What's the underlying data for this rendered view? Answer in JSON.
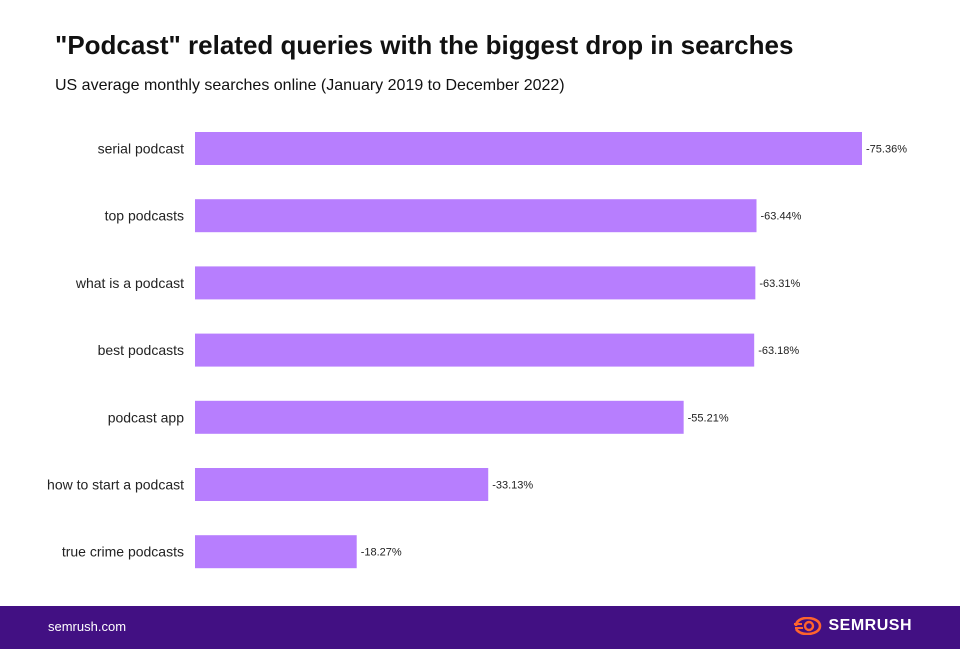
{
  "header": {
    "title": "\"Podcast\" related queries with the biggest drop in searches",
    "subtitle": "US average monthly searches online (January 2019 to December 2022)"
  },
  "chart_data": {
    "type": "bar",
    "orientation": "horizontal",
    "categories": [
      "serial podcast",
      "top podcasts",
      "what is a podcast",
      "best podcasts",
      "podcast app",
      "how to start a podcast",
      "true crime podcasts"
    ],
    "values": [
      -75.36,
      -63.44,
      -63.31,
      -63.18,
      -55.21,
      -33.13,
      -18.27
    ],
    "data_labels": [
      "-75.36%",
      "-63.44%",
      "-63.31%",
      "-63.18%",
      "-55.21%",
      "-33.13%",
      "-18.27%"
    ],
    "bar_color": "#b77efe",
    "grid": false,
    "legend": "none"
  },
  "footer": {
    "url": "semrush.com",
    "brand": "SEMRUSH",
    "brand_icon": "semrush-logo-icon",
    "background": "#421083",
    "icon_color": "#ff642d"
  }
}
